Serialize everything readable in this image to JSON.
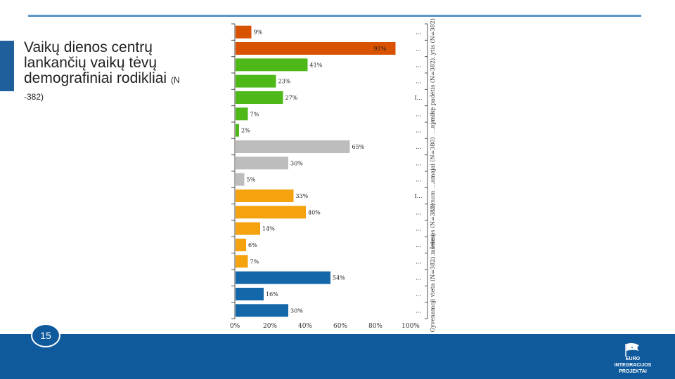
{
  "slide": {
    "title_main": "Vaikų dienos centrų lankančių vaikų tėvų demografiniai rodikliai",
    "title_n": "(N",
    "title_n2": "-382)",
    "page_number": "15"
  },
  "logo": {
    "line1": "EURO INTEGRACIJOS",
    "line2": "PROJEKTAI"
  },
  "chart_data": {
    "type": "bar",
    "orientation": "horizontal",
    "xlim": [
      0,
      100
    ],
    "x_ticks": [
      "0%",
      "20%",
      "40%",
      "60%",
      "80%",
      "100%"
    ],
    "grid": false,
    "bars": [
      {
        "value": 9,
        "label": "9%",
        "category": "...",
        "color": "#d95200"
      },
      {
        "value": 91,
        "label": "91%",
        "category": "...",
        "color": "#d95200"
      },
      {
        "value": 41,
        "label": "41%",
        "category": "...",
        "color": "#4db818"
      },
      {
        "value": 23,
        "label": "23%",
        "category": "...",
        "color": "#4db818"
      },
      {
        "value": 27,
        "label": "27%",
        "category": "I...",
        "color": "#4db818"
      },
      {
        "value": 7,
        "label": "7%",
        "category": "...",
        "color": "#4db818"
      },
      {
        "value": 2,
        "label": "2%",
        "category": "...",
        "color": "#4db818"
      },
      {
        "value": 65,
        "label": "65%",
        "category": "...",
        "color": "#bdbdbd"
      },
      {
        "value": 30,
        "label": "30%",
        "category": "...",
        "color": "#bdbdbd"
      },
      {
        "value": 5,
        "label": "5%",
        "category": "...",
        "color": "#bdbdbd"
      },
      {
        "value": 33,
        "label": "33%",
        "category": "I...",
        "color": "#f4a30f"
      },
      {
        "value": 40,
        "label": "40%",
        "category": "...",
        "color": "#f4a30f"
      },
      {
        "value": 14,
        "label": "14%",
        "category": "...",
        "color": "#f4a30f"
      },
      {
        "value": 6,
        "label": "6%",
        "category": "...",
        "color": "#f4a30f"
      },
      {
        "value": 7,
        "label": "7%",
        "category": "...",
        "color": "#f4a30f"
      },
      {
        "value": 54,
        "label": "54%",
        "category": "...",
        "color": "#1467a8"
      },
      {
        "value": 16,
        "label": "16%",
        "category": "...",
        "color": "#1467a8"
      },
      {
        "value": 30,
        "label": "30%",
        "category": "...",
        "color": "#1467a8"
      }
    ],
    "group_labels": [
      "...ytis (N=382)",
      "...nymine padėtis (N=382)",
      "...amajai (N=380)",
      "...šeimos (N=382)",
      "Gyvenamoji vieta (N=382)"
    ],
    "group_labels_fragments": [
      "...įvaikį",
      "...vienam",
      "...mėnesį"
    ]
  }
}
